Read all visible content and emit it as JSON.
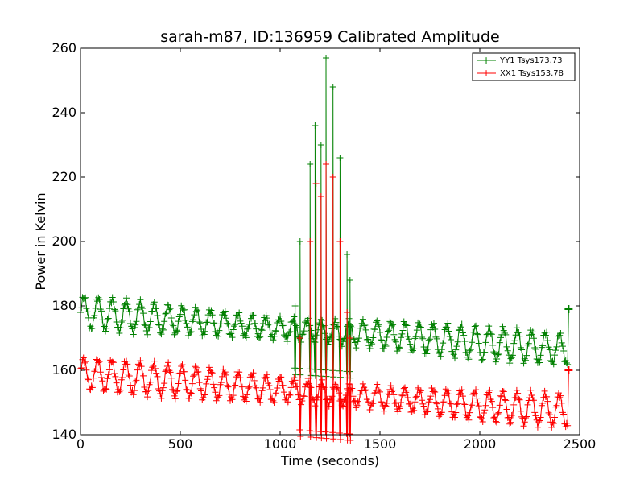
{
  "chart_data": {
    "type": "line",
    "title": "sarah-m87, ID:136959 Calibrated Amplitude",
    "xlabel": "Time (seconds)",
    "ylabel": "Power in Kelvin",
    "xlim": [
      0,
      2500
    ],
    "ylim": [
      140,
      260
    ],
    "xticks": [
      "0",
      "500",
      "1000",
      "1500",
      "2000",
      "2500"
    ],
    "yticks": [
      "140",
      "160",
      "180",
      "200",
      "220",
      "240",
      "260"
    ],
    "grid": false,
    "legend_position": "top-right",
    "marker": "+",
    "series": [
      {
        "name": "YY1 Tsys173.73",
        "color": "#008000",
        "baseline": [
          [
            0,
            178
          ],
          [
            500,
            175.5
          ],
          [
            1000,
            173
          ],
          [
            1500,
            171
          ],
          [
            2000,
            168.5
          ],
          [
            2440,
            166.5
          ]
        ],
        "oscillation_amplitude": 4,
        "oscillation_period": 70,
        "spikes": [
          [
            1075,
            180
          ],
          [
            1100,
            200
          ],
          [
            1150,
            224
          ],
          [
            1175,
            236
          ],
          [
            1205,
            230
          ],
          [
            1230,
            257
          ],
          [
            1265,
            248
          ],
          [
            1300,
            226
          ],
          [
            1335,
            196
          ],
          [
            1350,
            188
          ]
        ],
        "end_point": [
          2445,
          179
        ]
      },
      {
        "name": "XX1 Tsys153.78",
        "color": "#ff0000",
        "baseline": [
          [
            0,
            159
          ],
          [
            500,
            156.5
          ],
          [
            1000,
            154
          ],
          [
            1500,
            151.5
          ],
          [
            2000,
            149
          ],
          [
            2440,
            147.5
          ]
        ],
        "oscillation_amplitude": 4,
        "oscillation_period": 70,
        "spikes": [
          [
            1100,
            170
          ],
          [
            1150,
            200
          ],
          [
            1180,
            218
          ],
          [
            1205,
            214
          ],
          [
            1230,
            224
          ],
          [
            1265,
            220
          ],
          [
            1300,
            200
          ],
          [
            1335,
            178
          ],
          [
            1350,
            170
          ]
        ],
        "end_point": [
          2445,
          160
        ]
      }
    ]
  }
}
